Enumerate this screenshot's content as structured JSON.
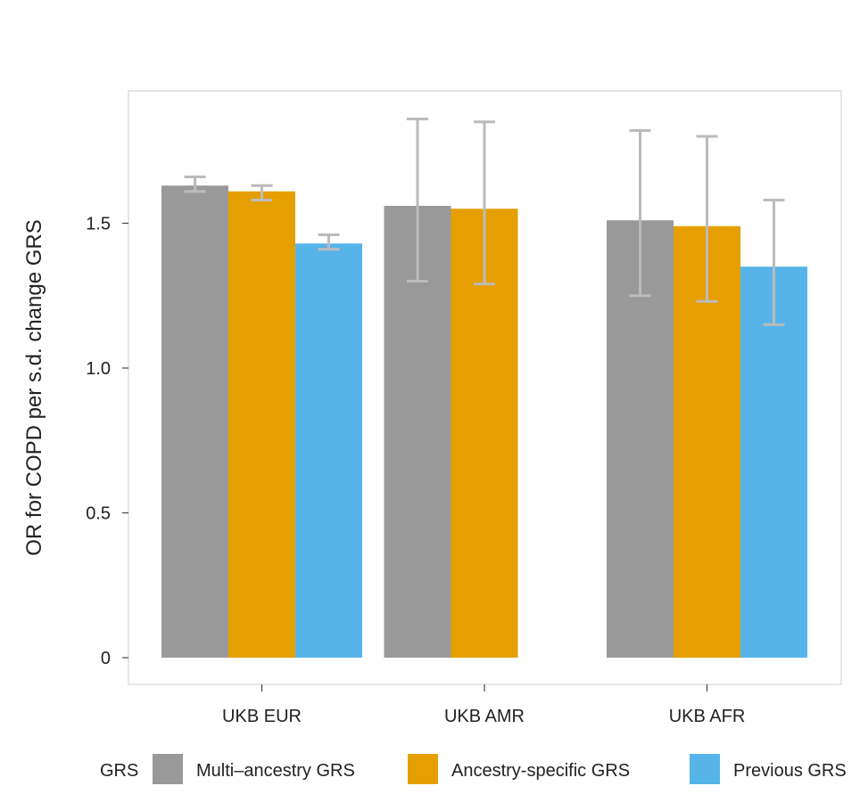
{
  "chart_data": {
    "type": "bar",
    "title": "",
    "xlabel": "",
    "ylabel": "OR for COPD per s.d. change GRS",
    "ylim": [
      0,
      1.95
    ],
    "yticks": [
      {
        "value": 0,
        "label": "0"
      },
      {
        "value": 0.5,
        "label": "0.5"
      },
      {
        "value": 1.0,
        "label": "1.0"
      },
      {
        "value": 1.5,
        "label": "1.5"
      }
    ],
    "grid": false,
    "error_bars": true,
    "categories": [
      "UKB EUR",
      "UKB AMR",
      "UKB AFR"
    ],
    "series": [
      {
        "name": "Multi–ancestry GRS",
        "color": "#999999",
        "values": [
          1.63,
          1.56,
          1.51
        ],
        "ci_low": [
          1.61,
          1.3,
          1.25
        ],
        "ci_high": [
          1.66,
          1.86,
          1.82
        ]
      },
      {
        "name": "Ancestry-specific GRS",
        "color": "#E69F00",
        "values": [
          1.61,
          1.55,
          1.49
        ],
        "ci_low": [
          1.58,
          1.29,
          1.23
        ],
        "ci_high": [
          1.63,
          1.85,
          1.8
        ]
      },
      {
        "name": "Previous GRS",
        "color": "#56B4E9",
        "values": [
          1.43,
          null,
          1.35
        ],
        "ci_low": [
          1.41,
          null,
          1.15
        ],
        "ci_high": [
          1.46,
          null,
          1.58
        ]
      }
    ],
    "errorbar_color": "#BBBBBB",
    "legend": {
      "title": "GRS",
      "position": "bottom"
    }
  }
}
